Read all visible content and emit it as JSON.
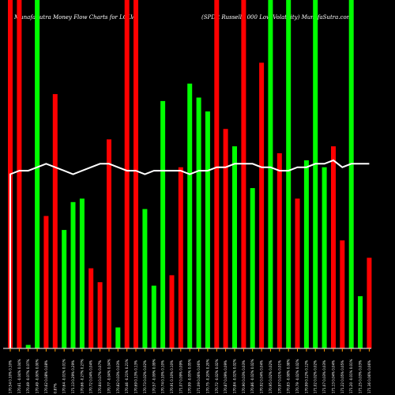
{
  "chart_data": {
    "type": "bar",
    "title_left": "MunafaSutra  Money Flow  Charts for LGLV",
    "title_right": "(SPDR Russell 1000  Low  Volatility) MunafaSutra.com",
    "colors": {
      "background": "#000000",
      "up": "#00ff00",
      "down": "#ff0000",
      "line": "#ffffff",
      "axis": "#ffffff",
      "tick": "#ff9900"
    },
    "ylim": [
      0,
      100
    ],
    "bars": [
      {
        "value": 100,
        "color": "down",
        "label": "170.54 0.10% 0.10%"
      },
      {
        "value": 100,
        "color": "down",
        "label": "170.61 -0.04% 0.04%"
      },
      {
        "value": 1,
        "color": "up",
        "label": "170.49 -0.07% 0.07%"
      },
      {
        "value": 100,
        "color": "up",
        "label": "170.49 -0.00% 0.00%"
      },
      {
        "value": 38,
        "color": "down",
        "label": "170.62 0.08% 0.08%"
      },
      {
        "value": 73,
        "color": "down",
        "label": "0.87%"
      },
      {
        "value": 34,
        "color": "up",
        "label": "170.64 -0.01% 0.01%"
      },
      {
        "value": 42,
        "color": "up",
        "label": "171.13 0.29% 0.29%"
      },
      {
        "value": 43,
        "color": "up",
        "label": "170.66 -0.27% 0.27%"
      },
      {
        "value": 23,
        "color": "down",
        "label": "170.72 0.04% 0.04%"
      },
      {
        "value": 19,
        "color": "down",
        "label": "170.84 0.07% 0.07%"
      },
      {
        "value": 60,
        "color": "down",
        "label": "170.77 -0.04% 0.04%"
      },
      {
        "value": 6,
        "color": "up",
        "label": "170.82 0.03% 0.03%"
      },
      {
        "value": 100,
        "color": "down",
        "label": "170.46 -0.21% 0.21%"
      },
      {
        "value": 100,
        "color": "down",
        "label": "170.69 0.13% 0.13%"
      },
      {
        "value": 40,
        "color": "up",
        "label": "170.73 0.02% 0.02%"
      },
      {
        "value": 18,
        "color": "up",
        "label": "170.57 -0.09% 0.09%"
      },
      {
        "value": 71,
        "color": "up",
        "label": "170.74 0.10% 0.10%"
      },
      {
        "value": 21,
        "color": "down",
        "label": "170.91 0.10% 0.10%"
      },
      {
        "value": 52,
        "color": "down",
        "label": "171.07 0.09% 0.09%"
      },
      {
        "value": 76,
        "color": "up",
        "label": "170.99 -0.05% 0.05%"
      },
      {
        "value": 72,
        "color": "up",
        "label": "171.09 0.06% 0.06%"
      },
      {
        "value": 68,
        "color": "up",
        "label": "170.75 -0.20% 0.20%"
      },
      {
        "value": 100,
        "color": "down",
        "label": "170.72 -0.02% 0.02%"
      },
      {
        "value": 63,
        "color": "down",
        "label": "170.87 0.09% 0.09%"
      },
      {
        "value": 58,
        "color": "up",
        "label": "170.84 -0.02% 0.02%"
      },
      {
        "value": 100,
        "color": "down",
        "label": "170.90 0.03% 0.03%"
      },
      {
        "value": 46,
        "color": "up",
        "label": "170.86 -0.02% 0.02%"
      },
      {
        "value": 82,
        "color": "down",
        "label": "170.92 0.04% 0.04%"
      },
      {
        "value": 100,
        "color": "up",
        "label": "170.95 0.02% 0.02%"
      },
      {
        "value": 56,
        "color": "down",
        "label": "170.97 0.01% 0.01%"
      },
      {
        "value": 100,
        "color": "up",
        "label": "170.83 -0.08% 0.08%"
      },
      {
        "value": 43,
        "color": "down",
        "label": "170.79 -0.02% 0.02%"
      },
      {
        "value": 54,
        "color": "up",
        "label": "170.99 0.12% 0.12%"
      },
      {
        "value": 100,
        "color": "up",
        "label": "171.02 0.02% 0.02%"
      },
      {
        "value": 52,
        "color": "up",
        "label": "171.07 0.03% 0.03%"
      },
      {
        "value": 58,
        "color": "down",
        "label": "171.13 0.04% 0.04%"
      },
      {
        "value": 31,
        "color": "down",
        "label": "171.22 0.05% 0.05%"
      },
      {
        "value": 100,
        "color": "up",
        "label": "171.20 -0.01% 0.01%"
      },
      {
        "value": 15,
        "color": "up",
        "label": "171.25 0.03% 0.03%"
      },
      {
        "value": 26,
        "color": "down",
        "label": "171.36 0.06% 0.06%"
      }
    ],
    "line": [
      50,
      51,
      51,
      52,
      53,
      52,
      51,
      50,
      51,
      52,
      53,
      53,
      52,
      51,
      51,
      50,
      51,
      51,
      51,
      51,
      50,
      51,
      51,
      52,
      52,
      53,
      53,
      53,
      52,
      52,
      51,
      51,
      52,
      52,
      53,
      53,
      54,
      52,
      53,
      53,
      53
    ]
  }
}
